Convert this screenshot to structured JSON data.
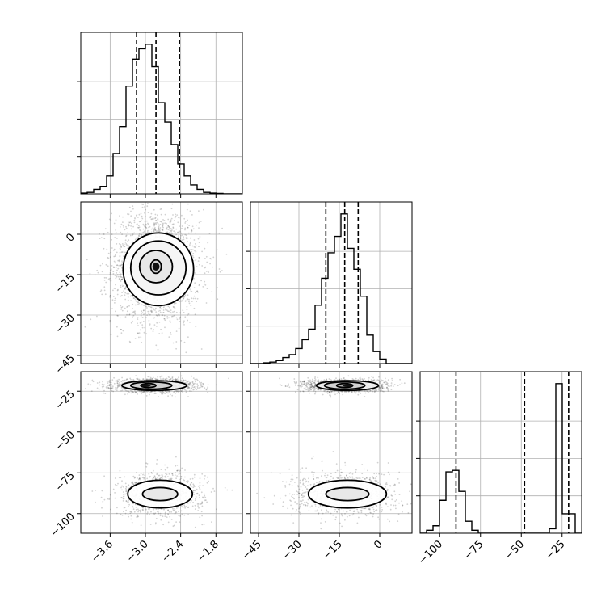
{
  "chart_data": {
    "type": "corner",
    "grid": true,
    "colors": {
      "line": "#000000",
      "grid": "#b0b0b0",
      "points": "#000000"
    },
    "params": [
      {
        "range": [
          -4.1,
          -1.35
        ],
        "ticks": [
          -3.6,
          -3.0,
          -2.4,
          -1.8
        ],
        "tick_labels": [
          "-3.6",
          "-3.0",
          "-2.4",
          "-1.8"
        ],
        "quantiles": [
          -3.15,
          -2.82,
          -2.42
        ]
      },
      {
        "range": [
          -48,
          12
        ],
        "ticks": [
          -45,
          -30,
          -15,
          0
        ],
        "tick_labels": [
          "-45",
          "-30",
          "-15",
          "0"
        ],
        "quantiles": [
          -20,
          -13,
          -8
        ]
      },
      {
        "range": [
          -112,
          -13
        ],
        "ticks": [
          -100,
          -75,
          -50,
          -25
        ],
        "tick_labels": [
          "-100",
          "-75",
          "-50",
          "-25"
        ],
        "quantiles": [
          -90,
          -48,
          -21
        ]
      }
    ],
    "histograms": [
      {
        "edges": [
          -4.1,
          -3.99,
          -3.88,
          -3.77,
          -3.66,
          -3.55,
          -3.44,
          -3.33,
          -3.22,
          -3.11,
          -3.0,
          -2.89,
          -2.78,
          -2.67,
          -2.56,
          -2.45,
          -2.34,
          -2.23,
          -2.12,
          -2.01,
          -1.9,
          -1.79,
          -1.68,
          -1.57,
          -1.46,
          -1.35
        ],
        "counts": [
          0.005,
          0.01,
          0.03,
          0.05,
          0.12,
          0.27,
          0.45,
          0.72,
          0.9,
          0.97,
          1.0,
          0.85,
          0.61,
          0.48,
          0.33,
          0.2,
          0.12,
          0.06,
          0.03,
          0.01,
          0.005,
          0.003,
          0.0,
          0.0,
          0.0
        ]
      },
      {
        "edges": [
          -48,
          -45.6,
          -43.2,
          -40.8,
          -38.4,
          -36,
          -33.6,
          -31.2,
          -28.8,
          -26.4,
          -24,
          -21.6,
          -19.2,
          -16.8,
          -14.4,
          -12,
          -9.6,
          -7.2,
          -4.8,
          -2.4,
          0,
          2.4,
          4.8,
          7.2,
          9.6,
          12
        ],
        "counts": [
          0.0,
          0.0,
          0.005,
          0.01,
          0.02,
          0.04,
          0.06,
          0.1,
          0.16,
          0.23,
          0.39,
          0.57,
          0.74,
          0.85,
          1.0,
          0.77,
          0.63,
          0.45,
          0.19,
          0.08,
          0.03,
          0.0,
          0.0,
          0.0,
          0.0
        ]
      },
      {
        "edges": [
          -112,
          -108.04,
          -104.08,
          -100.12,
          -96.16,
          -92.2,
          -88.24,
          -84.28,
          -80.32,
          -76.36,
          -72.4,
          -68.44,
          -64.48,
          -60.52,
          -56.56,
          -52.6,
          -48.64,
          -44.68,
          -40.72,
          -36.76,
          -32.8,
          -28.84,
          -24.88,
          -20.92,
          -16.96,
          -13
        ],
        "counts": [
          0.0,
          0.02,
          0.05,
          0.22,
          0.41,
          0.42,
          0.28,
          0.08,
          0.02,
          0.0,
          0.0,
          0.0,
          0.0,
          0.0,
          0.0,
          0.0,
          0.0,
          0.0,
          0.0,
          0.0,
          0.03,
          1.0,
          0.13,
          0.13,
          0.0
        ]
      }
    ],
    "pairs": [
      {
        "x": 0,
        "y": 1,
        "n_points": 2200,
        "blobs": [
          {
            "cx": -2.82,
            "cy": -12,
            "sx": 0.3,
            "sy": 8.5,
            "weight": 1.0
          }
        ],
        "contours": [
          {
            "cx": -2.82,
            "cy": -12,
            "rx": 0.09,
            "ry": 2.5
          },
          {
            "cx": -2.82,
            "cy": -12,
            "rx": 0.28,
            "ry": 6.0
          },
          {
            "cx": -2.78,
            "cy": -12.5,
            "rx": 0.47,
            "ry": 10.0
          },
          {
            "cx": -2.78,
            "cy": -13,
            "rx": 0.6,
            "ry": 13.5
          }
        ],
        "peak": {
          "cx": -2.82,
          "cy": -12,
          "rx": 0.06,
          "ry": 1.5
        }
      },
      {
        "x": 0,
        "y": 2,
        "n_points": 2400,
        "blobs": [
          {
            "cx": -2.85,
            "cy": -21.5,
            "sx": 0.28,
            "sy": 1.6,
            "weight": 0.6
          },
          {
            "cx": -2.75,
            "cy": -88,
            "sx": 0.3,
            "sy": 5.5,
            "weight": 0.4
          }
        ],
        "contours": [
          {
            "cx": -2.95,
            "cy": -21.5,
            "rx": 0.13,
            "ry": 1.2
          },
          {
            "cx": -2.9,
            "cy": -21.5,
            "rx": 0.35,
            "ry": 2.2
          },
          {
            "cx": -2.85,
            "cy": -21.5,
            "rx": 0.55,
            "ry": 3.0
          },
          {
            "cx": -2.75,
            "cy": -88,
            "rx": 0.3,
            "ry": 4.0
          },
          {
            "cx": -2.75,
            "cy": -88,
            "rx": 0.55,
            "ry": 8.5
          }
        ],
        "peak": {
          "cx": -3.0,
          "cy": -21.5,
          "rx": 0.09,
          "ry": 0.8
        }
      },
      {
        "x": 1,
        "y": 2,
        "n_points": 2400,
        "blobs": [
          {
            "cx": -13,
            "cy": -21.5,
            "sx": 6,
            "sy": 1.6,
            "weight": 0.6
          },
          {
            "cx": -13,
            "cy": -88,
            "sx": 8,
            "sy": 5.5,
            "weight": 0.4
          }
        ],
        "contours": [
          {
            "cx": -13,
            "cy": -21.5,
            "rx": 3.0,
            "ry": 1.2
          },
          {
            "cx": -13,
            "cy": -21.5,
            "rx": 7.5,
            "ry": 2.2
          },
          {
            "cx": -12,
            "cy": -21.5,
            "rx": 11.5,
            "ry": 3.0
          },
          {
            "cx": -12,
            "cy": -88,
            "rx": 8.0,
            "ry": 4.0
          },
          {
            "cx": -12,
            "cy": -88,
            "rx": 14.5,
            "ry": 8.5
          }
        ],
        "peak": {
          "cx": -12,
          "cy": -21.5,
          "rx": 1.8,
          "ry": 0.8
        }
      }
    ]
  }
}
